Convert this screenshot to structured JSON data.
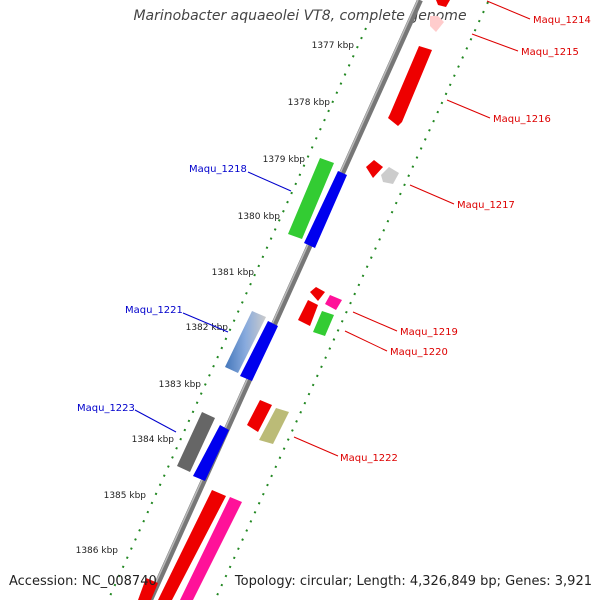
{
  "title": "Marinobacter aquaeolei VT8, complete genome",
  "footer": {
    "accession": "Accession: NC_008740",
    "topology": "Topology: circular; Length: 4,326,849 bp; Genes: 3,921"
  },
  "scale_ticks": [
    "1377 kbp",
    "1378 kbp",
    "1379 kbp",
    "1380 kbp",
    "1381 kbp",
    "1382 kbp",
    "1383 kbp",
    "1384 kbp",
    "1385 kbp",
    "1386 kbp"
  ],
  "gene_labels": {
    "maqu_1214": "Maqu_1214",
    "maqu_1215": "Maqu_1215",
    "maqu_1216": "Maqu_1216",
    "maqu_1217": "Maqu_1217",
    "maqu_1218": "Maqu_1218",
    "maqu_1219": "Maqu_1219",
    "maqu_1220": "Maqu_1220",
    "maqu_1221": "Maqu_1221",
    "maqu_1222": "Maqu_1222",
    "maqu_1223": "Maqu_1223"
  },
  "colors": {
    "label_red": "#dd0000",
    "label_blue": "#0000cc",
    "scale_dots": "#228822",
    "backbone": "#777777"
  }
}
